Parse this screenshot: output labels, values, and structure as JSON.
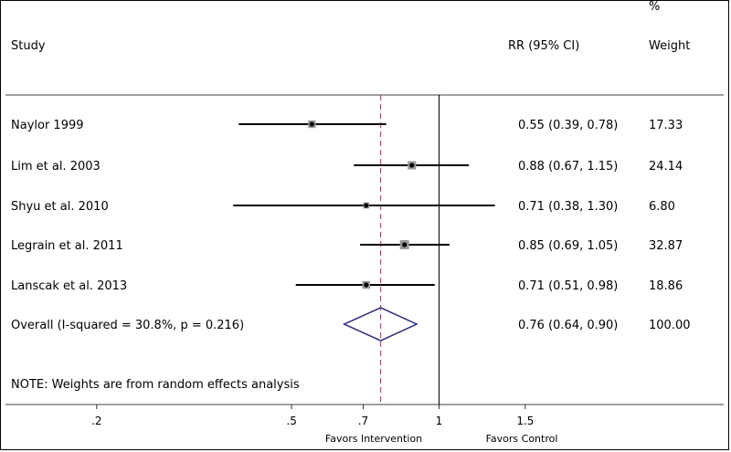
{
  "chart_data": {
    "type": "forest",
    "headers": {
      "study": "Study",
      "rr": "RR (95% CI)",
      "weight_pct": "%",
      "weight": "Weight"
    },
    "studies": [
      {
        "name": "Naylor 1999",
        "rr": 0.55,
        "lo": 0.39,
        "hi": 0.78,
        "rr_text": "0.55 (0.39, 0.78)",
        "weight": 17.33,
        "weight_text": "17.33"
      },
      {
        "name": "Lim et al. 2003",
        "rr": 0.88,
        "lo": 0.67,
        "hi": 1.15,
        "rr_text": "0.88 (0.67, 1.15)",
        "weight": 24.14,
        "weight_text": "24.14"
      },
      {
        "name": "Shyu et al. 2010",
        "rr": 0.71,
        "lo": 0.38,
        "hi": 1.3,
        "rr_text": "0.71 (0.38, 1.30)",
        "weight": 6.8,
        "weight_text": "6.80"
      },
      {
        "name": "Legrain et al. 2011",
        "rr": 0.85,
        "lo": 0.69,
        "hi": 1.05,
        "rr_text": "0.85 (0.69, 1.05)",
        "weight": 32.87,
        "weight_text": "32.87"
      },
      {
        "name": "Lanscak et al. 2013",
        "rr": 0.71,
        "lo": 0.51,
        "hi": 0.98,
        "rr_text": "0.71 (0.51, 0.98)",
        "weight": 18.86,
        "weight_text": "18.86"
      }
    ],
    "overall": {
      "label": "Overall  (I-squared = 30.8%, p = 0.216)",
      "rr": 0.76,
      "lo": 0.64,
      "hi": 0.9,
      "rr_text": "0.76 (0.64, 0.90)",
      "weight_text": "100.00"
    },
    "note": "NOTE: Weights are from random effects analysis",
    "x_scale": "log",
    "xlim": [
      0.2,
      1.5
    ],
    "reference_line": 1,
    "x_ticks": [
      {
        "value": 0.2,
        "label": ".2"
      },
      {
        "value": 0.5,
        "label": ".5"
      },
      {
        "value": 0.7,
        "label": ".7"
      },
      {
        "value": 1,
        "label": "1"
      },
      {
        "value": 1.5,
        "label": "1.5"
      }
    ],
    "x_captions": {
      "left": "Favors Intervention",
      "right": "Favors Control"
    },
    "colors": {
      "overall_diamond": "#2a2a7a",
      "overall_line": "#b03050",
      "marker": "#000000"
    }
  }
}
